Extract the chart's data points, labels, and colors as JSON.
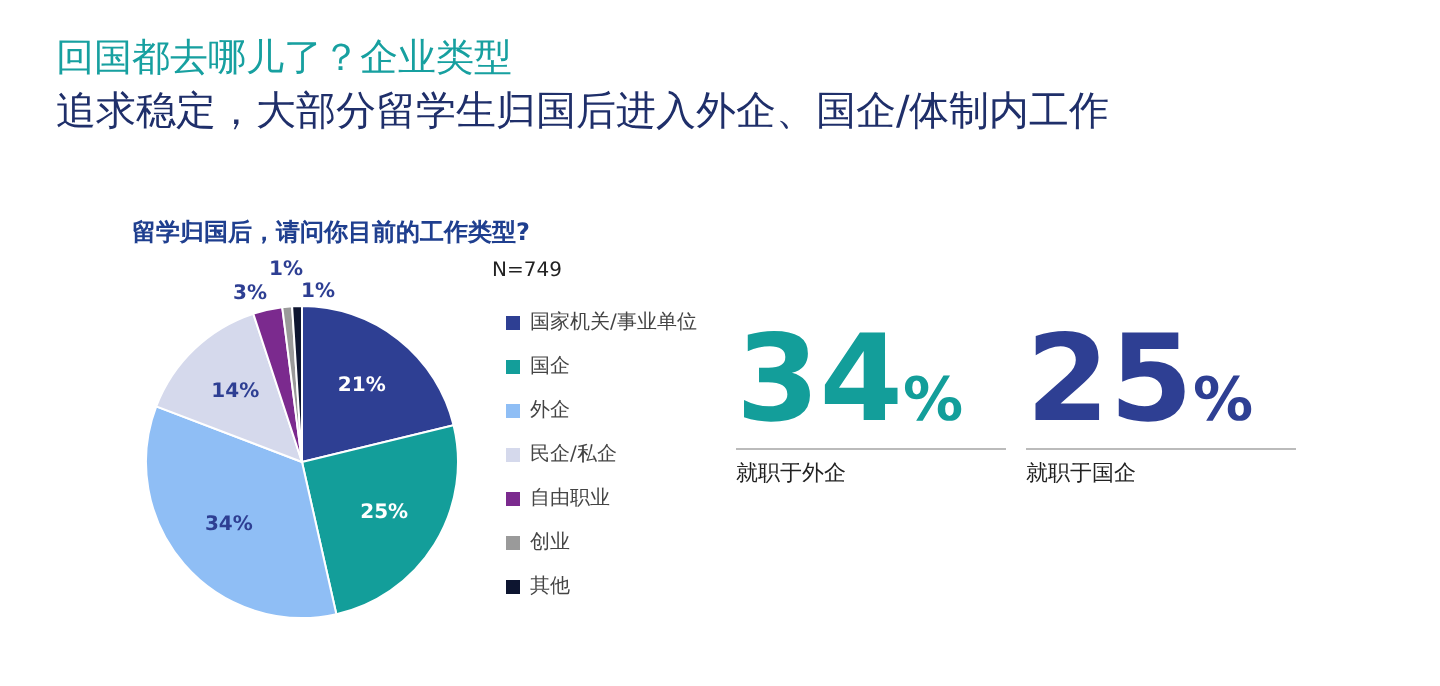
{
  "chart_data": {
    "type": "pie",
    "title": "回国都去哪儿了？企业类型",
    "subtitle": "追求稳定，大部分留学生归国后进入外企、国企/体制内工作",
    "legend_title": "留学归国后，请问你目前的工作类型?",
    "categories": [
      "国家机关/事业单位",
      "国企",
      "外企",
      "民企/私企",
      "自由职业",
      "创业",
      "其他"
    ],
    "values": [
      21,
      25,
      34,
      14,
      3,
      1,
      1
    ],
    "value_labels": [
      "21%",
      "25%",
      "34%",
      "14%",
      "3%",
      "1%",
      "1%"
    ],
    "colors": [
      "#2e3f93",
      "#139e9a",
      "#8fbef5",
      "#d5d9ec",
      "#7b2a8e",
      "#9a9a9a",
      "#0d1530"
    ],
    "legend": "right",
    "annotations": [
      "N=749",
      "34%",
      "就职于外企",
      "25%",
      "就职于国企"
    ]
  }
}
